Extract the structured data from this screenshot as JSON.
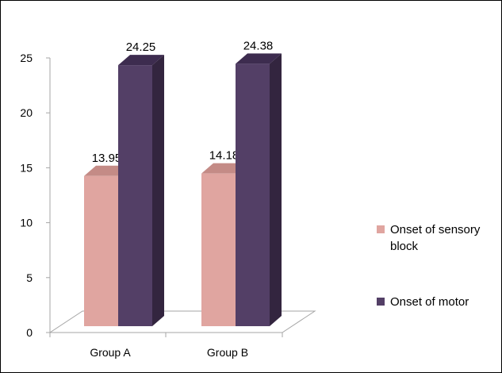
{
  "chart_data": {
    "type": "bar",
    "categories": [
      "Group A",
      "Group B"
    ],
    "series": [
      {
        "name": "Onset of sensory block",
        "legend_lines": [
          "Onset of sensory",
          "block"
        ],
        "values": [
          13.95,
          14.18
        ],
        "value_labels": [
          "13.95",
          "14.18"
        ],
        "color": "#e0a5a0",
        "top_color": "#c48b86",
        "side_color": "#b48480"
      },
      {
        "name": "Onset of motor",
        "legend_lines": [
          "Onset of motor"
        ],
        "values": [
          24.25,
          24.38
        ],
        "value_labels": [
          "24.25",
          "24.38"
        ],
        "color": "#533f66",
        "top_color": "#3d2c4f",
        "side_color": "#33253f"
      }
    ],
    "yticks": [
      0,
      5,
      10,
      15,
      20,
      25
    ],
    "ylim": [
      0,
      25
    ],
    "legend_position": "right",
    "grid": false,
    "style": "3d-bar"
  }
}
